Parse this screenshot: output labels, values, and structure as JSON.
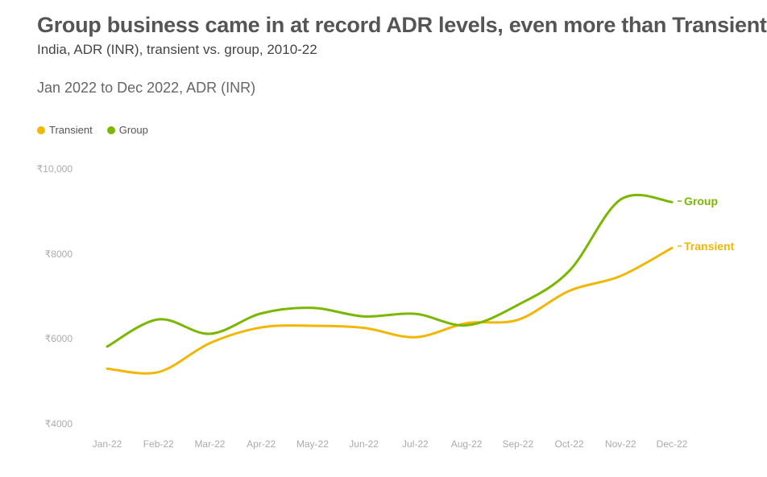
{
  "header": {
    "title": "Group business came in at record ADR levels, even more than Transient",
    "subtitle": "India, ADR (INR), transient vs. group, 2010-22",
    "period": "Jan 2022 to Dec 2022, ADR (INR)"
  },
  "chart_data": {
    "type": "line",
    "categories": [
      "Jan-22",
      "Feb-22",
      "Mar-22",
      "Apr-22",
      "May-22",
      "Jun-22",
      "Jul-22",
      "Aug-22",
      "Sep-22",
      "Oct-22",
      "Nov-22",
      "Dec-22"
    ],
    "series": [
      {
        "name": "Transient",
        "color": "#f2b705",
        "values": [
          5300,
          5220,
          5900,
          6270,
          6310,
          6260,
          6040,
          6370,
          6450,
          7130,
          7480,
          8140
        ]
      },
      {
        "name": "Group",
        "color": "#7ab800",
        "values": [
          5820,
          6460,
          6120,
          6600,
          6730,
          6530,
          6590,
          6320,
          6800,
          7600,
          9280,
          9220
        ]
      }
    ],
    "y_ticks": [
      "₹10,000",
      "₹8000",
      "₹6000",
      "₹4000"
    ],
    "ylim": [
      4000,
      10000
    ],
    "end_labels": [
      "Group",
      "Transient"
    ],
    "legend_position": "top-left",
    "grid": false
  }
}
